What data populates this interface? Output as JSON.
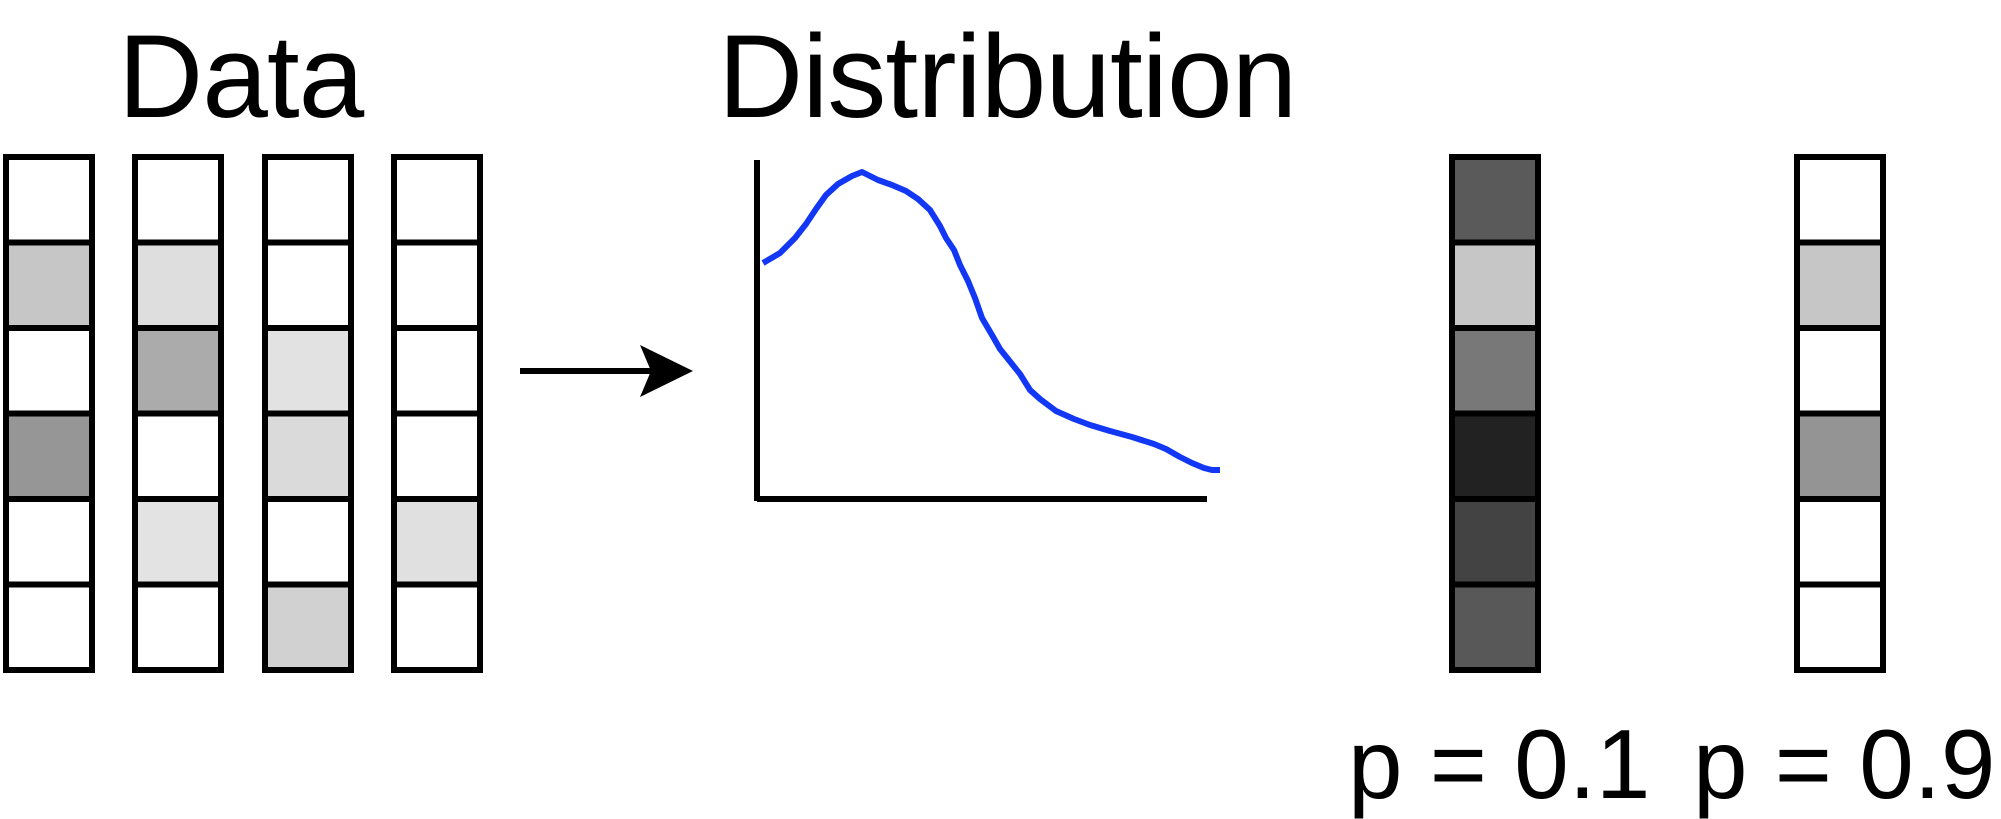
{
  "titles": {
    "data": "Data",
    "distribution": "Distribution"
  },
  "data_columns": [
    {
      "cells": [
        "#ffffff",
        "#c6c6c6",
        "#ffffff",
        "#969696",
        "#ffffff",
        "#ffffff"
      ]
    },
    {
      "cells": [
        "#ffffff",
        "#dedede",
        "#ababab",
        "#ffffff",
        "#e3e3e3",
        "#ffffff"
      ]
    },
    {
      "cells": [
        "#ffffff",
        "#ffffff",
        "#e2e2e2",
        "#dadada",
        "#ffffff",
        "#d1d1d1"
      ]
    },
    {
      "cells": [
        "#ffffff",
        "#ffffff",
        "#ffffff",
        "#ffffff",
        "#e0e0e0",
        "#ffffff"
      ]
    }
  ],
  "sample_columns": [
    {
      "label": "p = 0.1",
      "cells": [
        "#5a5a5a",
        "#c6c6c6",
        "#787878",
        "#222222",
        "#434343",
        "#585858"
      ]
    },
    {
      "label": "p = 0.9",
      "cells": [
        "#ffffff",
        "#c6c6c6",
        "#ffffff",
        "#949494",
        "#ffffff",
        "#ffffff"
      ]
    }
  ],
  "colors": {
    "curve": "#1238f5",
    "stroke": "#000000"
  }
}
